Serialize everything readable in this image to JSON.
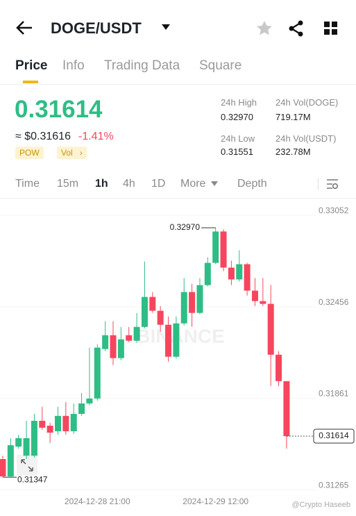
{
  "header": {
    "pair": "DOGE/USDT"
  },
  "tabs": [
    "Price",
    "Info",
    "Trading Data",
    "Square"
  ],
  "ticker": {
    "price": "0.31614",
    "approx_price": "≈ $0.31616",
    "change": "-1.41%",
    "tags": [
      "POW",
      "Vol"
    ],
    "stats": [
      {
        "label": "24h High",
        "value": "0.32970"
      },
      {
        "label": "24h Vol(DOGE)",
        "value": "719.17M"
      },
      {
        "label": "24h Low",
        "value": "0.31551"
      },
      {
        "label": "24h Vol(USDT)",
        "value": "232.78M"
      }
    ]
  },
  "timeframes": [
    "Time",
    "15m",
    "1h",
    "4h",
    "1D",
    "More",
    "Depth"
  ],
  "chart_data": {
    "type": "candlestick",
    "categories": [
      null,
      null,
      null,
      null,
      null,
      null,
      null,
      null,
      null,
      null,
      null,
      null,
      "2024-12-28 21:00",
      null,
      null,
      null,
      null,
      null,
      null,
      null,
      null,
      null,
      null,
      null,
      null,
      null,
      null,
      "2024-12-29 12:00",
      null,
      null,
      null,
      null,
      null,
      null,
      null,
      null,
      null
    ],
    "open": [
      0.31465,
      0.31352,
      0.31546,
      0.31487,
      0.31487,
      0.31714,
      0.31682,
      0.31646,
      0.31746,
      0.31646,
      0.31759,
      0.31827,
      0.31859,
      0.32181,
      0.32271,
      0.32122,
      0.32271,
      0.32235,
      0.32325,
      0.3252,
      0.3243,
      0.32339,
      0.32131,
      0.32348,
      0.32552,
      0.32416,
      0.32597,
      0.32742,
      0.32946,
      0.32711,
      0.32634,
      0.32733,
      0.32561,
      0.32493,
      0.32475,
      0.32144,
      0.31972
    ],
    "high": [
      0.31487,
      0.31601,
      0.31623,
      0.31714,
      0.31759,
      0.31805,
      0.317,
      0.31805,
      0.31836,
      0.31827,
      0.31895,
      0.3219,
      0.32212,
      0.32362,
      0.32362,
      0.32325,
      0.32325,
      0.32416,
      0.32751,
      0.32552,
      0.32461,
      0.32393,
      0.32393,
      0.32643,
      0.32606,
      0.32643,
      0.32778,
      0.3297,
      0.3296,
      0.32756,
      0.32824,
      0.32742,
      0.32643,
      0.32643,
      0.32597,
      0.32167,
      0.31972
    ],
    "low": [
      0.31347,
      0.3135,
      0.31533,
      0.31465,
      0.31474,
      0.31655,
      0.31569,
      0.31623,
      0.31623,
      0.31628,
      0.31746,
      0.31814,
      0.31845,
      0.32167,
      0.32076,
      0.32108,
      0.32226,
      0.32221,
      0.32316,
      0.32416,
      0.32294,
      0.32099,
      0.32117,
      0.32335,
      0.32325,
      0.32407,
      0.32588,
      0.32733,
      0.32688,
      0.32597,
      0.3262,
      0.32529,
      0.32461,
      0.32461,
      0.3194,
      0.3194,
      0.31533
    ],
    "close": [
      0.31352,
      0.31555,
      0.31601,
      0.31601,
      0.31714,
      0.31669,
      0.31637,
      0.31746,
      0.31646,
      0.31759,
      0.31827,
      0.31859,
      0.3219,
      0.32271,
      0.32122,
      0.32244,
      0.32235,
      0.32325,
      0.3252,
      0.3243,
      0.32339,
      0.32131,
      0.32348,
      0.32552,
      0.32416,
      0.32597,
      0.32742,
      0.32946,
      0.32711,
      0.32634,
      0.32733,
      0.32561,
      0.32493,
      0.32475,
      0.32144,
      0.31972,
      0.31614
    ],
    "up_color": "#2ebd85",
    "down_color": "#f6465d",
    "ylim": [
      0.3123,
      0.3316
    ],
    "yticks": [
      0.33052,
      0.32456,
      0.31861,
      0.31265
    ],
    "high_marker": {
      "value": 0.3297,
      "label": "0.32970"
    },
    "low_marker": 0.31347,
    "last_price": 0.31614,
    "watermark": "BINANCE",
    "credit": "@Crypto Haseeb"
  }
}
